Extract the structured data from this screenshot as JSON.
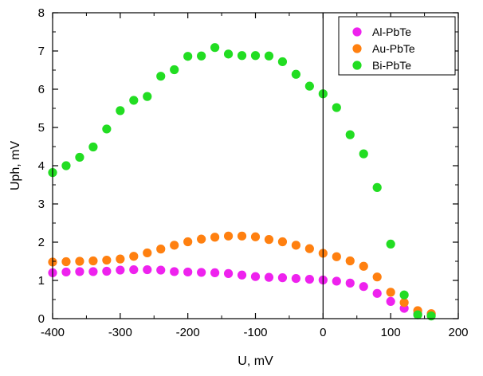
{
  "chart_data": {
    "type": "scatter",
    "xlabel": "U, mV",
    "ylabel": "Uph, mV",
    "xlim": [
      -400,
      200
    ],
    "ylim": [
      0,
      8
    ],
    "x_ticks": [
      -400,
      -300,
      -200,
      -100,
      0,
      100,
      200
    ],
    "y_ticks": [
      0,
      1,
      2,
      3,
      4,
      5,
      6,
      7,
      8
    ],
    "x_tick_labels": [
      "-400",
      "-300",
      "-200",
      "-100",
      "0",
      "100",
      "200"
    ],
    "y_tick_labels": [
      "0",
      "1",
      "2",
      "3",
      "4",
      "5",
      "6",
      "7",
      "8"
    ],
    "vertical_reference_line_x": 0,
    "grid": false,
    "legend_position": "top-right",
    "series": [
      {
        "name": "Al-PbTe",
        "color": "#ee22ee",
        "x": [
          -400,
          -380,
          -360,
          -340,
          -320,
          -300,
          -280,
          -260,
          -240,
          -220,
          -200,
          -180,
          -160,
          -140,
          -120,
          -100,
          -80,
          -60,
          -40,
          -20,
          0,
          20,
          40,
          60,
          80,
          100,
          120,
          140,
          160
        ],
        "y": [
          1.2,
          1.22,
          1.23,
          1.23,
          1.24,
          1.27,
          1.28,
          1.28,
          1.27,
          1.23,
          1.22,
          1.21,
          1.2,
          1.18,
          1.14,
          1.1,
          1.08,
          1.07,
          1.05,
          1.03,
          1.01,
          0.98,
          0.93,
          0.84,
          0.66,
          0.45,
          0.27,
          0.13,
          0.12
        ]
      },
      {
        "name": "Au-PbTe",
        "color": "#ff8010",
        "x": [
          -400,
          -380,
          -360,
          -340,
          -320,
          -300,
          -280,
          -260,
          -240,
          -220,
          -200,
          -180,
          -160,
          -140,
          -120,
          -100,
          -80,
          -60,
          -40,
          -20,
          0,
          20,
          40,
          60,
          80,
          100,
          120,
          140,
          160
        ],
        "y": [
          1.48,
          1.49,
          1.5,
          1.51,
          1.53,
          1.56,
          1.63,
          1.72,
          1.82,
          1.92,
          2.01,
          2.08,
          2.13,
          2.16,
          2.16,
          2.14,
          2.07,
          2.01,
          1.92,
          1.83,
          1.71,
          1.62,
          1.51,
          1.37,
          1.09,
          0.69,
          0.42,
          0.21,
          0.13
        ]
      },
      {
        "name": "Bi-PbTe",
        "color": "#22dd22",
        "x": [
          -400,
          -380,
          -360,
          -340,
          -320,
          -300,
          -280,
          -260,
          -240,
          -220,
          -200,
          -180,
          -160,
          -140,
          -120,
          -100,
          -80,
          -60,
          -40,
          -20,
          0,
          20,
          40,
          60,
          80,
          100,
          120,
          140,
          160
        ],
        "y": [
          3.82,
          4.0,
          4.22,
          4.49,
          4.96,
          5.44,
          5.71,
          5.81,
          6.34,
          6.51,
          6.86,
          6.87,
          7.09,
          6.92,
          6.88,
          6.88,
          6.87,
          6.72,
          6.39,
          6.08,
          5.88,
          5.52,
          4.81,
          4.31,
          3.43,
          1.95,
          0.62,
          0.1,
          0.07
        ]
      }
    ]
  }
}
